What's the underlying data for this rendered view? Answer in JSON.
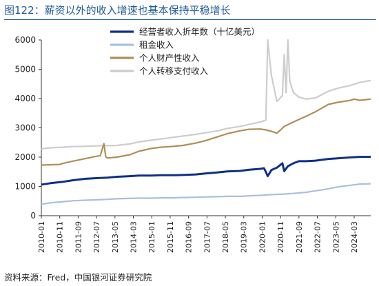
{
  "header": {
    "title": "图122：薪资以外的收入增速也基本保持平稳增长"
  },
  "footer": {
    "source": "资料来源：Fred，中国银河证券研究院"
  },
  "chart_data": {
    "type": "line",
    "title": "",
    "xlabel": "",
    "ylabel": "",
    "ylim": [
      0,
      6000
    ],
    "yticks": [
      0,
      1000,
      2000,
      3000,
      4000,
      5000,
      6000
    ],
    "xlim": [
      "2010-01",
      "2024-12"
    ],
    "xticks": [
      "2010-01",
      "2010-11",
      "2011-09",
      "2012-07",
      "2013-05",
      "2014-03",
      "2015-01",
      "2015-11",
      "2016-09",
      "2017-07",
      "2018-05",
      "2019-03",
      "2020-01",
      "2020-11",
      "2021-09",
      "2022-07",
      "2023-05",
      "2024-03"
    ],
    "legend_position": "top-right",
    "grid": false,
    "series": [
      {
        "name": "经营者收入折年数（十亿美元）",
        "color": "#0f2f86",
        "width": 3,
        "points": [
          [
            "2010-01",
            1060
          ],
          [
            "2010-06",
            1110
          ],
          [
            "2011-01",
            1160
          ],
          [
            "2011-06",
            1210
          ],
          [
            "2012-01",
            1260
          ],
          [
            "2012-06",
            1280
          ],
          [
            "2013-01",
            1300
          ],
          [
            "2013-06",
            1330
          ],
          [
            "2014-01",
            1350
          ],
          [
            "2014-06",
            1370
          ],
          [
            "2015-01",
            1370
          ],
          [
            "2015-06",
            1380
          ],
          [
            "2016-01",
            1380
          ],
          [
            "2016-06",
            1390
          ],
          [
            "2017-01",
            1410
          ],
          [
            "2017-06",
            1440
          ],
          [
            "2018-01",
            1480
          ],
          [
            "2018-06",
            1510
          ],
          [
            "2019-01",
            1530
          ],
          [
            "2019-06",
            1570
          ],
          [
            "2019-12",
            1600
          ],
          [
            "2020-02",
            1620
          ],
          [
            "2020-03",
            1500
          ],
          [
            "2020-04",
            1350
          ],
          [
            "2020-05",
            1450
          ],
          [
            "2020-06",
            1560
          ],
          [
            "2020-09",
            1640
          ],
          [
            "2020-12",
            1790
          ],
          [
            "2021-01",
            1520
          ],
          [
            "2021-03",
            1690
          ],
          [
            "2021-06",
            1790
          ],
          [
            "2021-09",
            1860
          ],
          [
            "2022-01",
            1860
          ],
          [
            "2022-06",
            1880
          ],
          [
            "2023-01",
            1940
          ],
          [
            "2023-06",
            1960
          ],
          [
            "2024-01",
            1990
          ],
          [
            "2024-06",
            2010
          ],
          [
            "2024-12",
            2010
          ]
        ]
      },
      {
        "name": "租金收入",
        "color": "#a9bfe0",
        "width": 2.2,
        "points": [
          [
            "2010-01",
            390
          ],
          [
            "2010-06",
            440
          ],
          [
            "2011-01",
            480
          ],
          [
            "2011-06",
            510
          ],
          [
            "2012-01",
            530
          ],
          [
            "2012-06",
            540
          ],
          [
            "2013-01",
            560
          ],
          [
            "2013-06",
            580
          ],
          [
            "2014-01",
            590
          ],
          [
            "2014-06",
            600
          ],
          [
            "2015-01",
            600
          ],
          [
            "2015-06",
            610
          ],
          [
            "2016-01",
            610
          ],
          [
            "2016-06",
            620
          ],
          [
            "2017-01",
            630
          ],
          [
            "2017-06",
            640
          ],
          [
            "2018-01",
            650
          ],
          [
            "2018-06",
            660
          ],
          [
            "2019-01",
            660
          ],
          [
            "2019-06",
            680
          ],
          [
            "2020-01",
            700
          ],
          [
            "2020-06",
            720
          ],
          [
            "2021-01",
            740
          ],
          [
            "2021-06",
            760
          ],
          [
            "2022-01",
            800
          ],
          [
            "2022-06",
            850
          ],
          [
            "2023-01",
            920
          ],
          [
            "2023-06",
            980
          ],
          [
            "2024-01",
            1040
          ],
          [
            "2024-06",
            1080
          ],
          [
            "2024-12",
            1090
          ]
        ]
      },
      {
        "name": "个人财产性收入",
        "color": "#b08d57",
        "width": 2.2,
        "points": [
          [
            "2010-01",
            1730
          ],
          [
            "2010-06",
            1740
          ],
          [
            "2010-11",
            1750
          ],
          [
            "2011-01",
            1790
          ],
          [
            "2011-06",
            1860
          ],
          [
            "2012-01",
            1950
          ],
          [
            "2012-06",
            2020
          ],
          [
            "2012-09",
            2050
          ],
          [
            "2012-11",
            2460
          ],
          [
            "2012-12",
            2010
          ],
          [
            "2013-01",
            1970
          ],
          [
            "2013-06",
            2000
          ],
          [
            "2014-01",
            2080
          ],
          [
            "2014-06",
            2200
          ],
          [
            "2015-01",
            2300
          ],
          [
            "2015-06",
            2340
          ],
          [
            "2016-01",
            2370
          ],
          [
            "2016-06",
            2400
          ],
          [
            "2017-01",
            2480
          ],
          [
            "2017-06",
            2560
          ],
          [
            "2018-01",
            2700
          ],
          [
            "2018-06",
            2800
          ],
          [
            "2019-01",
            2900
          ],
          [
            "2019-06",
            2950
          ],
          [
            "2019-12",
            2960
          ],
          [
            "2020-03",
            2930
          ],
          [
            "2020-06",
            2880
          ],
          [
            "2020-09",
            2820
          ],
          [
            "2020-11",
            2930
          ],
          [
            "2021-01",
            3050
          ],
          [
            "2021-06",
            3200
          ],
          [
            "2022-01",
            3400
          ],
          [
            "2022-06",
            3550
          ],
          [
            "2023-01",
            3800
          ],
          [
            "2023-06",
            3870
          ],
          [
            "2024-01",
            3940
          ],
          [
            "2024-03",
            3980
          ],
          [
            "2024-06",
            3940
          ],
          [
            "2024-12",
            3980
          ]
        ]
      },
      {
        "name": "个人转移支付收入",
        "color": "#cdcdcd",
        "width": 2.2,
        "points": [
          [
            "2010-01",
            2280
          ],
          [
            "2010-06",
            2320
          ],
          [
            "2011-01",
            2340
          ],
          [
            "2011-06",
            2360
          ],
          [
            "2012-01",
            2370
          ],
          [
            "2012-06",
            2380
          ],
          [
            "2012-11",
            2400
          ],
          [
            "2013-01",
            2390
          ],
          [
            "2013-06",
            2400
          ],
          [
            "2014-01",
            2450
          ],
          [
            "2014-06",
            2520
          ],
          [
            "2015-01",
            2580
          ],
          [
            "2015-06",
            2620
          ],
          [
            "2016-01",
            2680
          ],
          [
            "2016-06",
            2720
          ],
          [
            "2017-01",
            2780
          ],
          [
            "2017-06",
            2830
          ],
          [
            "2018-01",
            2900
          ],
          [
            "2018-06",
            2980
          ],
          [
            "2019-01",
            3050
          ],
          [
            "2019-06",
            3120
          ],
          [
            "2019-12",
            3200
          ],
          [
            "2020-03",
            3260
          ],
          [
            "2020-04",
            6000
          ],
          [
            "2020-05",
            5400
          ],
          [
            "2020-06",
            4800
          ],
          [
            "2020-09",
            3900
          ],
          [
            "2020-12",
            4100
          ],
          [
            "2021-01",
            5500
          ],
          [
            "2021-02",
            4200
          ],
          [
            "2021-03",
            6000
          ],
          [
            "2021-04",
            4600
          ],
          [
            "2021-06",
            4200
          ],
          [
            "2021-09",
            4050
          ],
          [
            "2022-01",
            3980
          ],
          [
            "2022-06",
            4020
          ],
          [
            "2023-01",
            4250
          ],
          [
            "2023-06",
            4350
          ],
          [
            "2024-01",
            4450
          ],
          [
            "2024-06",
            4550
          ],
          [
            "2024-12",
            4620
          ]
        ]
      }
    ]
  }
}
